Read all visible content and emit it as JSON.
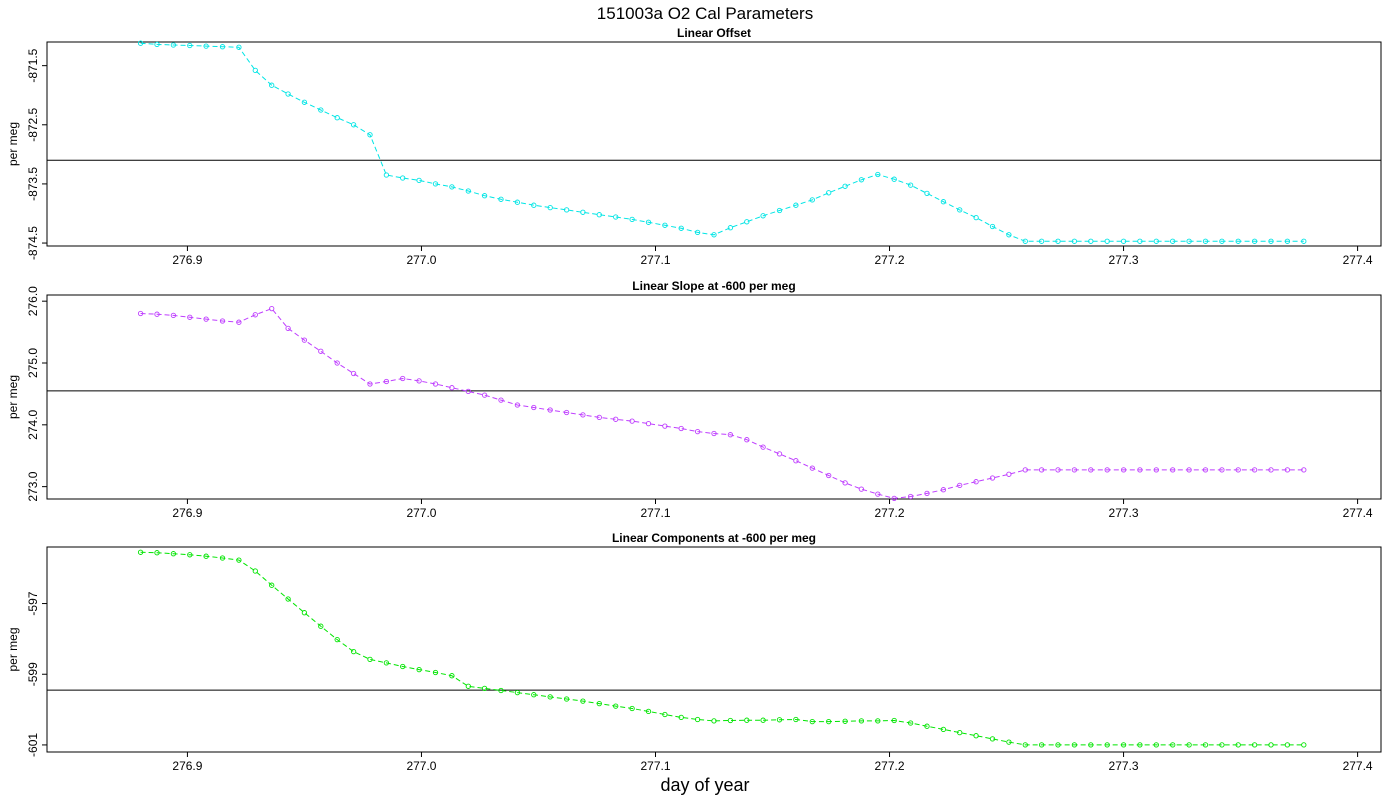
{
  "figure": {
    "title": "151003a   O2 Cal Parameters",
    "xlabel": "day of year"
  },
  "chart_data": [
    {
      "type": "line",
      "title": "Linear Offset",
      "ylabel": "per meg",
      "xlim": [
        276.84,
        277.41
      ],
      "ylim": [
        -874.55,
        -871.1
      ],
      "x_ticks": [
        "276.9",
        "277.0",
        "277.1",
        "277.2",
        "277.3",
        "277.4"
      ],
      "y_ticks": [
        "-871.5",
        "-872.5",
        "-873.5",
        "-874.5"
      ],
      "reference_line": -873.1,
      "color": "#00e5e5",
      "x": [
        276.88,
        276.887,
        276.894,
        276.901,
        276.908,
        276.915,
        276.922,
        276.929,
        276.936,
        276.943,
        276.95,
        276.957,
        276.964,
        276.971,
        276.978,
        276.985,
        276.992,
        276.999,
        277.006,
        277.013,
        277.02,
        277.027,
        277.034,
        277.041,
        277.048,
        277.055,
        277.062,
        277.069,
        277.076,
        277.083,
        277.09,
        277.097,
        277.104,
        277.111,
        277.118,
        277.125,
        277.132,
        277.139,
        277.146,
        277.153,
        277.16,
        277.167,
        277.174,
        277.181,
        277.188,
        277.195,
        277.202,
        277.209,
        277.216,
        277.223,
        277.23,
        277.237,
        277.244,
        277.251,
        277.258,
        277.265,
        277.272,
        277.279,
        277.286,
        277.293,
        277.3,
        277.307,
        277.314,
        277.321,
        277.328,
        277.335,
        277.342,
        277.349,
        277.356,
        277.363,
        277.37,
        277.377
      ],
      "y": [
        -871.12,
        -871.14,
        -871.15,
        -871.16,
        -871.17,
        -871.18,
        -871.19,
        -871.58,
        -871.83,
        -871.98,
        -872.12,
        -872.25,
        -872.38,
        -872.5,
        -872.67,
        -873.35,
        -873.4,
        -873.44,
        -873.5,
        -873.55,
        -873.62,
        -873.7,
        -873.76,
        -873.81,
        -873.86,
        -873.9,
        -873.94,
        -873.98,
        -874.02,
        -874.06,
        -874.1,
        -874.15,
        -874.2,
        -874.25,
        -874.32,
        -874.36,
        -874.24,
        -874.14,
        -874.04,
        -873.95,
        -873.86,
        -873.77,
        -873.65,
        -873.54,
        -873.43,
        -873.34,
        -873.42,
        -873.52,
        -873.66,
        -873.8,
        -873.94,
        -874.07,
        -874.22,
        -874.36,
        -874.47,
        -874.47,
        -874.47,
        -874.47,
        -874.47,
        -874.47,
        -874.47,
        -874.47,
        -874.47,
        -874.47,
        -874.47,
        -874.47,
        -874.47,
        -874.47,
        -874.47,
        -874.47,
        -874.47,
        -874.47
      ]
    },
    {
      "type": "line",
      "title": "Linear Slope at -600 per meg",
      "ylabel": "per meg",
      "xlim": [
        276.84,
        277.41
      ],
      "ylim": [
        272.8,
        276.1
      ],
      "x_ticks": [
        "276.9",
        "277.0",
        "277.1",
        "277.2",
        "277.3",
        "277.4"
      ],
      "y_ticks": [
        "276.0",
        "275.0",
        "274.0",
        "273.0"
      ],
      "reference_line": 274.55,
      "color": "#bf3fff",
      "x": [
        276.88,
        276.887,
        276.894,
        276.901,
        276.908,
        276.915,
        276.922,
        276.929,
        276.936,
        276.943,
        276.95,
        276.957,
        276.964,
        276.971,
        276.978,
        276.985,
        276.992,
        276.999,
        277.006,
        277.013,
        277.02,
        277.027,
        277.034,
        277.041,
        277.048,
        277.055,
        277.062,
        277.069,
        277.076,
        277.083,
        277.09,
        277.097,
        277.104,
        277.111,
        277.118,
        277.125,
        277.132,
        277.139,
        277.146,
        277.153,
        277.16,
        277.167,
        277.174,
        277.181,
        277.188,
        277.195,
        277.202,
        277.209,
        277.216,
        277.223,
        277.23,
        277.237,
        277.244,
        277.251,
        277.258,
        277.265,
        277.272,
        277.279,
        277.286,
        277.293,
        277.3,
        277.307,
        277.314,
        277.321,
        277.328,
        277.335,
        277.342,
        277.349,
        277.356,
        277.363,
        277.37,
        277.377
      ],
      "y": [
        275.8,
        275.79,
        275.77,
        275.74,
        275.71,
        275.68,
        275.66,
        275.78,
        275.88,
        275.56,
        275.37,
        275.19,
        275.0,
        274.83,
        274.66,
        274.7,
        274.75,
        274.71,
        274.66,
        274.6,
        274.54,
        274.48,
        274.4,
        274.32,
        274.28,
        274.24,
        274.2,
        274.16,
        274.12,
        274.09,
        274.06,
        274.02,
        273.98,
        273.94,
        273.89,
        273.86,
        273.84,
        273.76,
        273.64,
        273.53,
        273.42,
        273.3,
        273.18,
        273.06,
        272.96,
        272.88,
        272.81,
        272.84,
        272.89,
        272.95,
        273.02,
        273.08,
        273.14,
        273.2,
        273.27,
        273.27,
        273.27,
        273.27,
        273.27,
        273.27,
        273.27,
        273.27,
        273.27,
        273.27,
        273.27,
        273.27,
        273.27,
        273.27,
        273.27,
        273.27,
        273.27,
        273.27
      ]
    },
    {
      "type": "line",
      "title": "Linear Components at -600 per meg",
      "ylabel": "per meg",
      "xlim": [
        276.84,
        277.41
      ],
      "ylim": [
        -601.2,
        -595.4
      ],
      "x_ticks": [
        "276.9",
        "277.0",
        "277.1",
        "277.2",
        "277.3",
        "277.4"
      ],
      "y_ticks": [
        "-597",
        "-599",
        "-601"
      ],
      "reference_line": -599.45,
      "color": "#00e500",
      "x": [
        276.88,
        276.887,
        276.894,
        276.901,
        276.908,
        276.915,
        276.922,
        276.929,
        276.936,
        276.943,
        276.95,
        276.957,
        276.964,
        276.971,
        276.978,
        276.985,
        276.992,
        276.999,
        277.006,
        277.013,
        277.02,
        277.027,
        277.034,
        277.041,
        277.048,
        277.055,
        277.062,
        277.069,
        277.076,
        277.083,
        277.09,
        277.097,
        277.104,
        277.111,
        277.118,
        277.125,
        277.132,
        277.139,
        277.146,
        277.153,
        277.16,
        277.167,
        277.174,
        277.181,
        277.188,
        277.195,
        277.202,
        277.209,
        277.216,
        277.223,
        277.23,
        277.237,
        277.244,
        277.251,
        277.258,
        277.265,
        277.272,
        277.279,
        277.286,
        277.293,
        277.3,
        277.307,
        277.314,
        277.321,
        277.328,
        277.335,
        277.342,
        277.349,
        277.356,
        277.363,
        277.37,
        277.377
      ],
      "y": [
        -595.55,
        -595.56,
        -595.59,
        -595.62,
        -595.66,
        -595.71,
        -595.77,
        -596.08,
        -596.48,
        -596.87,
        -597.26,
        -597.64,
        -598.02,
        -598.36,
        -598.58,
        -598.68,
        -598.78,
        -598.87,
        -598.95,
        -599.04,
        -599.34,
        -599.4,
        -599.46,
        -599.52,
        -599.58,
        -599.64,
        -599.7,
        -599.76,
        -599.83,
        -599.9,
        -599.97,
        -600.05,
        -600.14,
        -600.22,
        -600.28,
        -600.32,
        -600.31,
        -600.3,
        -600.3,
        -600.29,
        -600.28,
        -600.34,
        -600.34,
        -600.33,
        -600.32,
        -600.32,
        -600.31,
        -600.38,
        -600.47,
        -600.56,
        -600.65,
        -600.74,
        -600.83,
        -600.92,
        -601.0,
        -601.0,
        -601.0,
        -601.0,
        -601.0,
        -601.0,
        -601.0,
        -601.0,
        -601.0,
        -601.0,
        -601.0,
        -601.0,
        -601.0,
        -601.0,
        -601.0,
        -601.0,
        -601.0,
        -601.0
      ]
    }
  ]
}
